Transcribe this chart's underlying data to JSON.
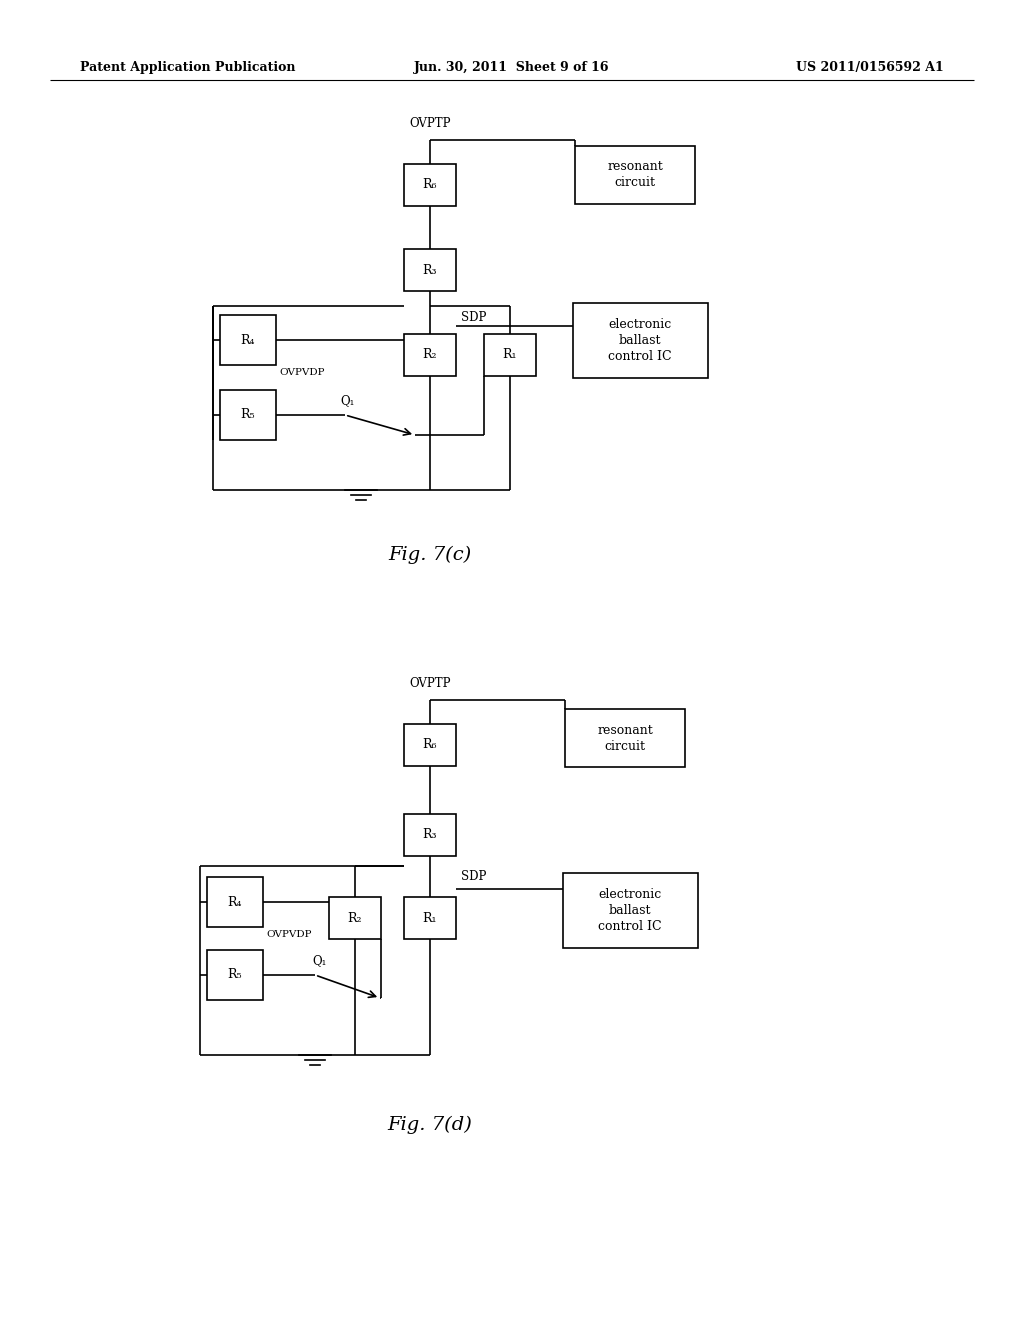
{
  "background_color": "#ffffff",
  "header_left": "Patent Application Publication",
  "header_center": "Jun. 30, 2011  Sheet 9 of 16",
  "header_right": "US 2011/0156592 A1",
  "fig_c_label": "Fig. 7(c)",
  "fig_d_label": "Fig. 7(d)"
}
